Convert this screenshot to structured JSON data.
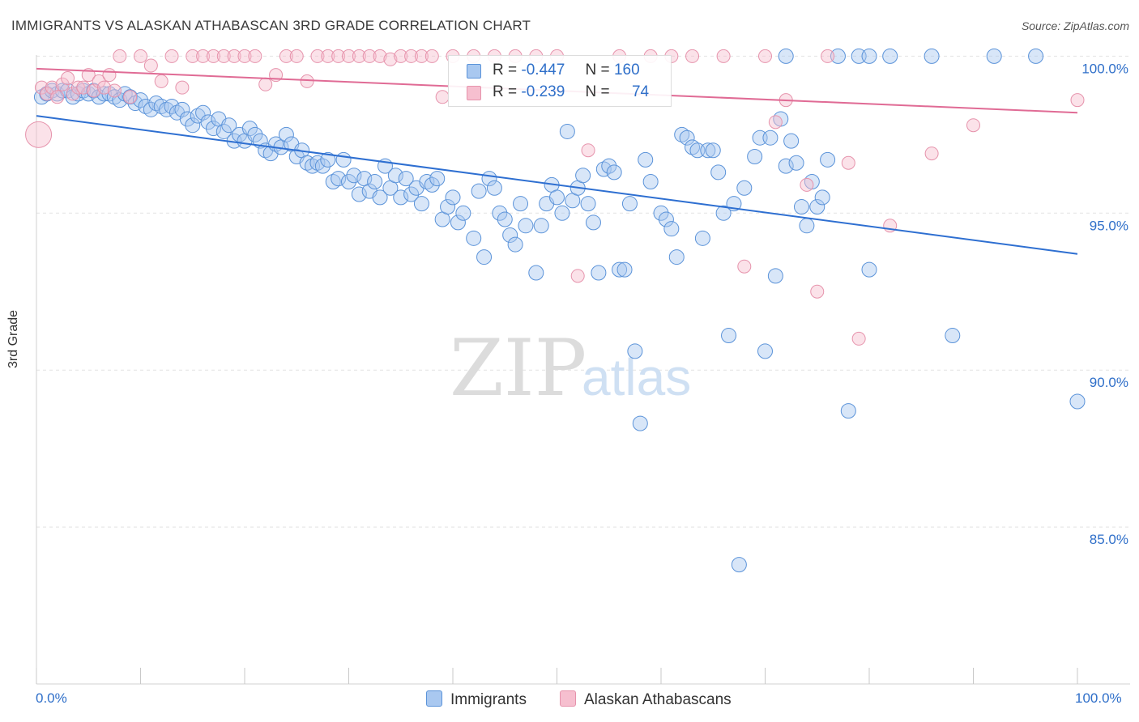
{
  "header": {
    "title": "IMMIGRANTS VS ALASKAN ATHABASCAN 3RD GRADE CORRELATION CHART",
    "source": "Source: ZipAtlas.com"
  },
  "watermark": {
    "zip": "ZIP",
    "atlas": "atlas"
  },
  "legend": {
    "r_label": "R =",
    "n_label": "N =",
    "series": [
      {
        "name": "Immigrants",
        "r": "-0.447",
        "n": "160",
        "fill": "#a9c8f0",
        "stroke": "#5b93d9"
      },
      {
        "name": "Alaskan Athabascans",
        "r": "-0.239",
        "n": "74",
        "fill": "#f6bfcf",
        "stroke": "#e693ac"
      }
    ]
  },
  "chart_data": {
    "type": "scatter",
    "ylabel": "3rd Grade",
    "xlabel": "",
    "xlim": [
      0,
      100
    ],
    "ylim": [
      80,
      100.5
    ],
    "x_tick_labels": [
      "0.0%",
      "100.0%"
    ],
    "y_tick_labels": [
      "100.0%",
      "95.0%",
      "90.0%",
      "85.0%"
    ],
    "y_ticks": [
      100,
      95,
      90,
      85
    ],
    "grid": true,
    "legend_position": "top-center",
    "colors": {
      "immigrants_line": "#2e6fd1",
      "athabascan_line": "#e06b95",
      "tick_text": "#2f6fc9"
    },
    "series": [
      {
        "name": "Immigrants",
        "trend": [
          [
            0,
            98.1
          ],
          [
            100,
            93.7
          ]
        ],
        "points": [
          [
            0.5,
            98.7
          ],
          [
            1,
            98.8
          ],
          [
            1.5,
            98.9
          ],
          [
            2,
            98.8
          ],
          [
            2.5,
            98.9
          ],
          [
            3,
            98.9
          ],
          [
            3.5,
            98.7
          ],
          [
            4,
            98.8
          ],
          [
            4.5,
            98.9
          ],
          [
            5,
            98.8
          ],
          [
            5.5,
            98.9
          ],
          [
            6,
            98.7
          ],
          [
            6.5,
            98.8
          ],
          [
            7,
            98.8
          ],
          [
            7.5,
            98.7
          ],
          [
            8,
            98.6
          ],
          [
            8.5,
            98.8
          ],
          [
            9,
            98.7
          ],
          [
            9.5,
            98.5
          ],
          [
            10,
            98.6
          ],
          [
            10.5,
            98.4
          ],
          [
            11,
            98.3
          ],
          [
            11.5,
            98.5
          ],
          [
            12,
            98.4
          ],
          [
            12.5,
            98.3
          ],
          [
            13,
            98.4
          ],
          [
            13.5,
            98.2
          ],
          [
            14,
            98.3
          ],
          [
            14.5,
            98.0
          ],
          [
            15,
            97.8
          ],
          [
            15.5,
            98.1
          ],
          [
            16,
            98.2
          ],
          [
            16.5,
            97.9
          ],
          [
            17,
            97.7
          ],
          [
            17.5,
            98.0
          ],
          [
            18,
            97.6
          ],
          [
            18.5,
            97.8
          ],
          [
            19,
            97.3
          ],
          [
            19.5,
            97.5
          ],
          [
            20,
            97.3
          ],
          [
            20.5,
            97.7
          ],
          [
            21,
            97.5
          ],
          [
            21.5,
            97.3
          ],
          [
            22,
            97.0
          ],
          [
            22.5,
            96.9
          ],
          [
            23,
            97.2
          ],
          [
            23.5,
            97.1
          ],
          [
            24,
            97.5
          ],
          [
            24.5,
            97.2
          ],
          [
            25,
            96.8
          ],
          [
            25.5,
            97.0
          ],
          [
            26,
            96.6
          ],
          [
            26.5,
            96.5
          ],
          [
            27,
            96.6
          ],
          [
            27.5,
            96.5
          ],
          [
            28,
            96.7
          ],
          [
            28.5,
            96.0
          ],
          [
            29,
            96.1
          ],
          [
            29.5,
            96.7
          ],
          [
            30,
            96.0
          ],
          [
            30.5,
            96.2
          ],
          [
            31,
            95.6
          ],
          [
            31.5,
            96.1
          ],
          [
            32,
            95.7
          ],
          [
            32.5,
            96.0
          ],
          [
            33,
            95.5
          ],
          [
            33.5,
            96.5
          ],
          [
            34,
            95.8
          ],
          [
            34.5,
            96.2
          ],
          [
            35,
            95.5
          ],
          [
            35.5,
            96.1
          ],
          [
            36,
            95.6
          ],
          [
            36.5,
            95.8
          ],
          [
            37,
            95.3
          ],
          [
            37.5,
            96.0
          ],
          [
            38,
            95.9
          ],
          [
            38.5,
            96.1
          ],
          [
            39,
            94.8
          ],
          [
            39.5,
            95.2
          ],
          [
            40,
            95.5
          ],
          [
            40.5,
            94.7
          ],
          [
            41,
            95.0
          ],
          [
            42,
            94.2
          ],
          [
            42.5,
            95.7
          ],
          [
            43,
            93.6
          ],
          [
            43.5,
            96.1
          ],
          [
            44,
            95.8
          ],
          [
            44.5,
            95.0
          ],
          [
            45,
            94.8
          ],
          [
            45.5,
            94.3
          ],
          [
            46,
            94.0
          ],
          [
            46.5,
            95.3
          ],
          [
            47,
            94.6
          ],
          [
            48,
            93.1
          ],
          [
            48.5,
            94.6
          ],
          [
            49,
            95.3
          ],
          [
            49.5,
            95.9
          ],
          [
            50,
            95.5
          ],
          [
            50.5,
            95.0
          ],
          [
            51,
            97.6
          ],
          [
            51.5,
            95.4
          ],
          [
            52,
            95.8
          ],
          [
            52.5,
            96.2
          ],
          [
            53,
            95.3
          ],
          [
            53.5,
            94.7
          ],
          [
            54,
            93.1
          ],
          [
            54.5,
            96.4
          ],
          [
            55,
            96.5
          ],
          [
            55.5,
            96.3
          ],
          [
            56,
            93.2
          ],
          [
            56.5,
            93.2
          ],
          [
            57,
            95.3
          ],
          [
            57.5,
            90.6
          ],
          [
            58,
            88.3
          ],
          [
            58.5,
            96.7
          ],
          [
            59,
            96.0
          ],
          [
            60,
            95.0
          ],
          [
            60.5,
            94.8
          ],
          [
            61,
            94.5
          ],
          [
            61.5,
            93.6
          ],
          [
            62,
            97.5
          ],
          [
            62.5,
            97.4
          ],
          [
            63,
            97.1
          ],
          [
            63.5,
            97.0
          ],
          [
            64,
            94.2
          ],
          [
            64.5,
            97.0
          ],
          [
            65,
            97.0
          ],
          [
            65.5,
            96.3
          ],
          [
            66,
            95.0
          ],
          [
            66.5,
            91.1
          ],
          [
            67,
            95.3
          ],
          [
            67.5,
            83.8
          ],
          [
            68,
            95.8
          ],
          [
            69,
            96.8
          ],
          [
            69.5,
            97.4
          ],
          [
            70,
            90.6
          ],
          [
            70.5,
            97.4
          ],
          [
            71,
            93.0
          ],
          [
            71.5,
            98.0
          ],
          [
            72,
            96.5
          ],
          [
            72.5,
            97.3
          ],
          [
            73,
            96.6
          ],
          [
            73.5,
            95.2
          ],
          [
            74,
            94.6
          ],
          [
            74.5,
            96.0
          ],
          [
            75,
            95.2
          ],
          [
            75.5,
            95.5
          ],
          [
            76,
            96.7
          ],
          [
            77,
            100.0
          ],
          [
            78,
            88.7
          ],
          [
            79,
            100.0
          ],
          [
            80,
            93.2
          ],
          [
            82,
            100.0
          ],
          [
            86,
            100.0
          ],
          [
            88,
            91.1
          ],
          [
            92,
            100.0
          ],
          [
            96,
            100.0
          ],
          [
            100,
            89.0
          ],
          [
            72,
            100.0
          ],
          [
            80,
            100.0
          ]
        ]
      },
      {
        "name": "Alaskan Athabascans",
        "trend": [
          [
            0,
            99.6
          ],
          [
            100,
            98.2
          ]
        ],
        "points": [
          [
            0.2,
            97.5
          ],
          [
            0.5,
            99.0
          ],
          [
            1,
            98.8
          ],
          [
            1.5,
            99.0
          ],
          [
            2,
            98.7
          ],
          [
            2.5,
            99.1
          ],
          [
            3,
            99.3
          ],
          [
            3.5,
            98.8
          ],
          [
            4,
            99.0
          ],
          [
            4.5,
            99.0
          ],
          [
            5,
            99.4
          ],
          [
            5.5,
            98.9
          ],
          [
            6,
            99.2
          ],
          [
            6.5,
            99.0
          ],
          [
            7,
            99.4
          ],
          [
            7.5,
            98.9
          ],
          [
            8,
            100.0
          ],
          [
            9,
            98.7
          ],
          [
            10,
            100.0
          ],
          [
            11,
            99.7
          ],
          [
            12,
            99.2
          ],
          [
            13,
            100.0
          ],
          [
            14,
            99.0
          ],
          [
            15,
            100.0
          ],
          [
            16,
            100.0
          ],
          [
            17,
            100.0
          ],
          [
            18,
            100.0
          ],
          [
            19,
            100.0
          ],
          [
            20,
            100.0
          ],
          [
            21,
            100.0
          ],
          [
            22,
            99.1
          ],
          [
            23,
            99.4
          ],
          [
            24,
            100.0
          ],
          [
            25,
            100.0
          ],
          [
            26,
            99.2
          ],
          [
            27,
            100.0
          ],
          [
            28,
            100.0
          ],
          [
            29,
            100.0
          ],
          [
            30,
            100.0
          ],
          [
            31,
            100.0
          ],
          [
            32,
            100.0
          ],
          [
            33,
            100.0
          ],
          [
            34,
            99.9
          ],
          [
            35,
            100.0
          ],
          [
            36,
            100.0
          ],
          [
            37,
            100.0
          ],
          [
            38,
            100.0
          ],
          [
            39,
            98.7
          ],
          [
            40,
            100.0
          ],
          [
            42,
            100.0
          ],
          [
            44,
            100.0
          ],
          [
            46,
            100.0
          ],
          [
            48,
            100.0
          ],
          [
            50,
            100.0
          ],
          [
            52,
            93.0
          ],
          [
            53,
            97.0
          ],
          [
            56,
            100.0
          ],
          [
            59,
            100.0
          ],
          [
            61,
            100.0
          ],
          [
            63,
            100.0
          ],
          [
            66,
            100.0
          ],
          [
            68,
            93.3
          ],
          [
            70,
            100.0
          ],
          [
            71,
            97.9
          ],
          [
            72,
            98.6
          ],
          [
            74,
            95.9
          ],
          [
            75,
            92.5
          ],
          [
            76,
            100.0
          ],
          [
            78,
            96.6
          ],
          [
            79,
            91.0
          ],
          [
            82,
            94.6
          ],
          [
            86,
            96.9
          ],
          [
            90,
            97.8
          ],
          [
            100,
            98.6
          ]
        ]
      }
    ]
  }
}
